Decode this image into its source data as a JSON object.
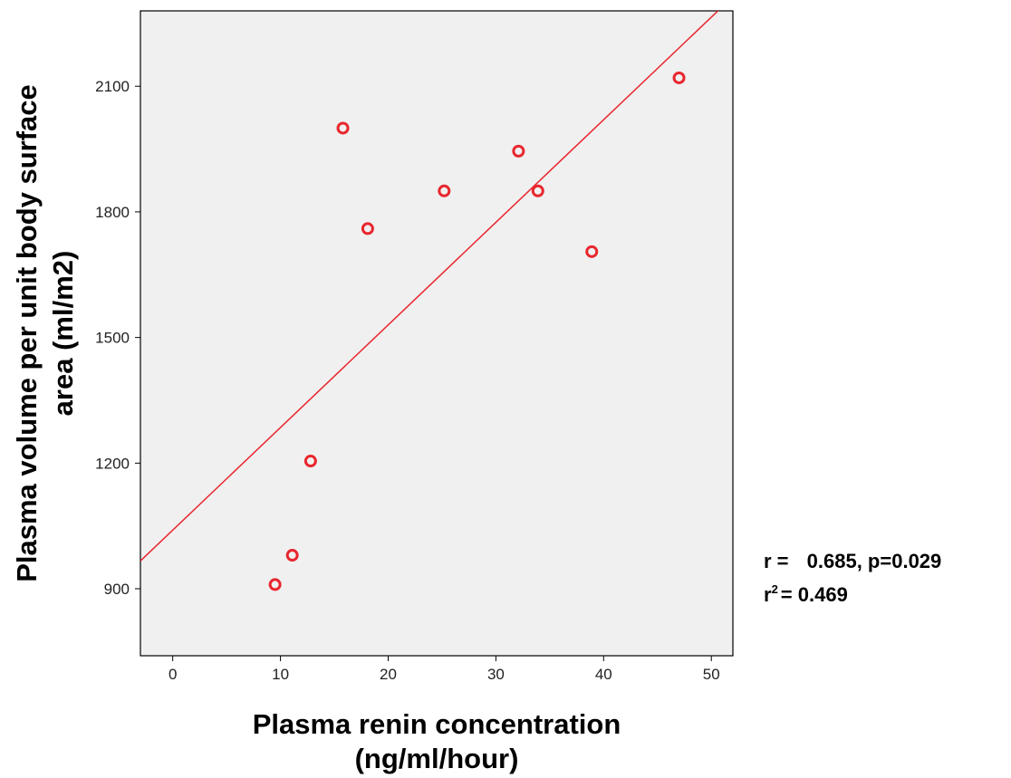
{
  "chart_data": {
    "type": "scatter",
    "title": "",
    "xlabel_line1": "Plasma renin concentration",
    "xlabel_line2": "(ng/ml/hour)",
    "ylabel_line1": "Plasma volume per unit body surface",
    "ylabel_line2": "area (ml/m2)",
    "xlim": [
      -3,
      52
    ],
    "ylim": [
      740,
      2280
    ],
    "x_ticks": [
      0,
      10,
      20,
      30,
      40,
      50
    ],
    "x_tick_labels": [
      "0",
      "10",
      "20",
      "30",
      "40",
      "50"
    ],
    "y_ticks": [
      900,
      1200,
      1500,
      1800,
      2100
    ],
    "y_tick_labels": [
      "900",
      "1200",
      "1500",
      "1800",
      "2100"
    ],
    "grid": false,
    "background_color": "#f0f0f0",
    "marker_color": "#e8262e",
    "line_color": "#e8262e",
    "points": [
      {
        "x": 9.5,
        "y": 910
      },
      {
        "x": 11.1,
        "y": 980
      },
      {
        "x": 12.8,
        "y": 1205
      },
      {
        "x": 15.8,
        "y": 2000
      },
      {
        "x": 18.1,
        "y": 1760
      },
      {
        "x": 25.2,
        "y": 1850
      },
      {
        "x": 32.1,
        "y": 1945
      },
      {
        "x": 33.9,
        "y": 1850
      },
      {
        "x": 38.9,
        "y": 1705
      },
      {
        "x": 47.0,
        "y": 2120
      }
    ],
    "fit_line": {
      "slope": 24.5,
      "intercept": 1040
    },
    "annotation": {
      "r_label": "r =",
      "r_value": "0.685, p=0.029",
      "r2_base": "r",
      "r2_exp": "2",
      "r2_value": "= 0.469"
    }
  }
}
